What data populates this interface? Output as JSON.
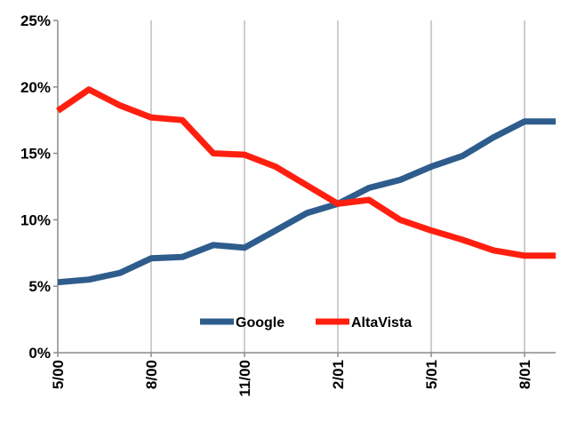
{
  "chart_data": {
    "type": "line",
    "title": "",
    "xlabel": "",
    "ylabel": "",
    "ylim": [
      0,
      25
    ],
    "y_ticks": [
      "0%",
      "5%",
      "10%",
      "15%",
      "20%",
      "25%"
    ],
    "y_tick_values": [
      0,
      5,
      10,
      15,
      20,
      25
    ],
    "x_points": [
      "5/00",
      "6/00",
      "7/00",
      "8/00",
      "9/00",
      "10/00",
      "11/00",
      "12/00",
      "1/01",
      "2/01",
      "3/01",
      "4/01",
      "5/01",
      "6/01",
      "7/01",
      "8/01",
      "9/01"
    ],
    "x_tick_labels": [
      {
        "label": "5/00",
        "x": "5/00"
      },
      {
        "label": "8/00",
        "x": "8/00"
      },
      {
        "label": "11/00",
        "x": "11/00"
      },
      {
        "label": "2/01",
        "x": "2/01"
      },
      {
        "label": "5/01",
        "x": "5/01"
      },
      {
        "label": "8/01",
        "x": "8/01"
      }
    ],
    "grid": "vertical",
    "legend_position": "bottom-center",
    "series": [
      {
        "name": "Google",
        "color": "#2e5c8c",
        "values": [
          5.3,
          5.5,
          6.0,
          7.1,
          7.2,
          8.1,
          7.9,
          9.2,
          10.5,
          11.2,
          12.4,
          13.0,
          14.0,
          14.8,
          16.2,
          17.4,
          17.4
        ]
      },
      {
        "name": "AltaVista",
        "color": "#ff1f0f",
        "values": [
          18.2,
          19.8,
          18.6,
          17.7,
          17.5,
          15.0,
          14.9,
          14.0,
          12.6,
          11.2,
          11.5,
          10.0,
          9.2,
          8.5,
          7.7,
          7.3,
          7.3
        ]
      }
    ]
  }
}
